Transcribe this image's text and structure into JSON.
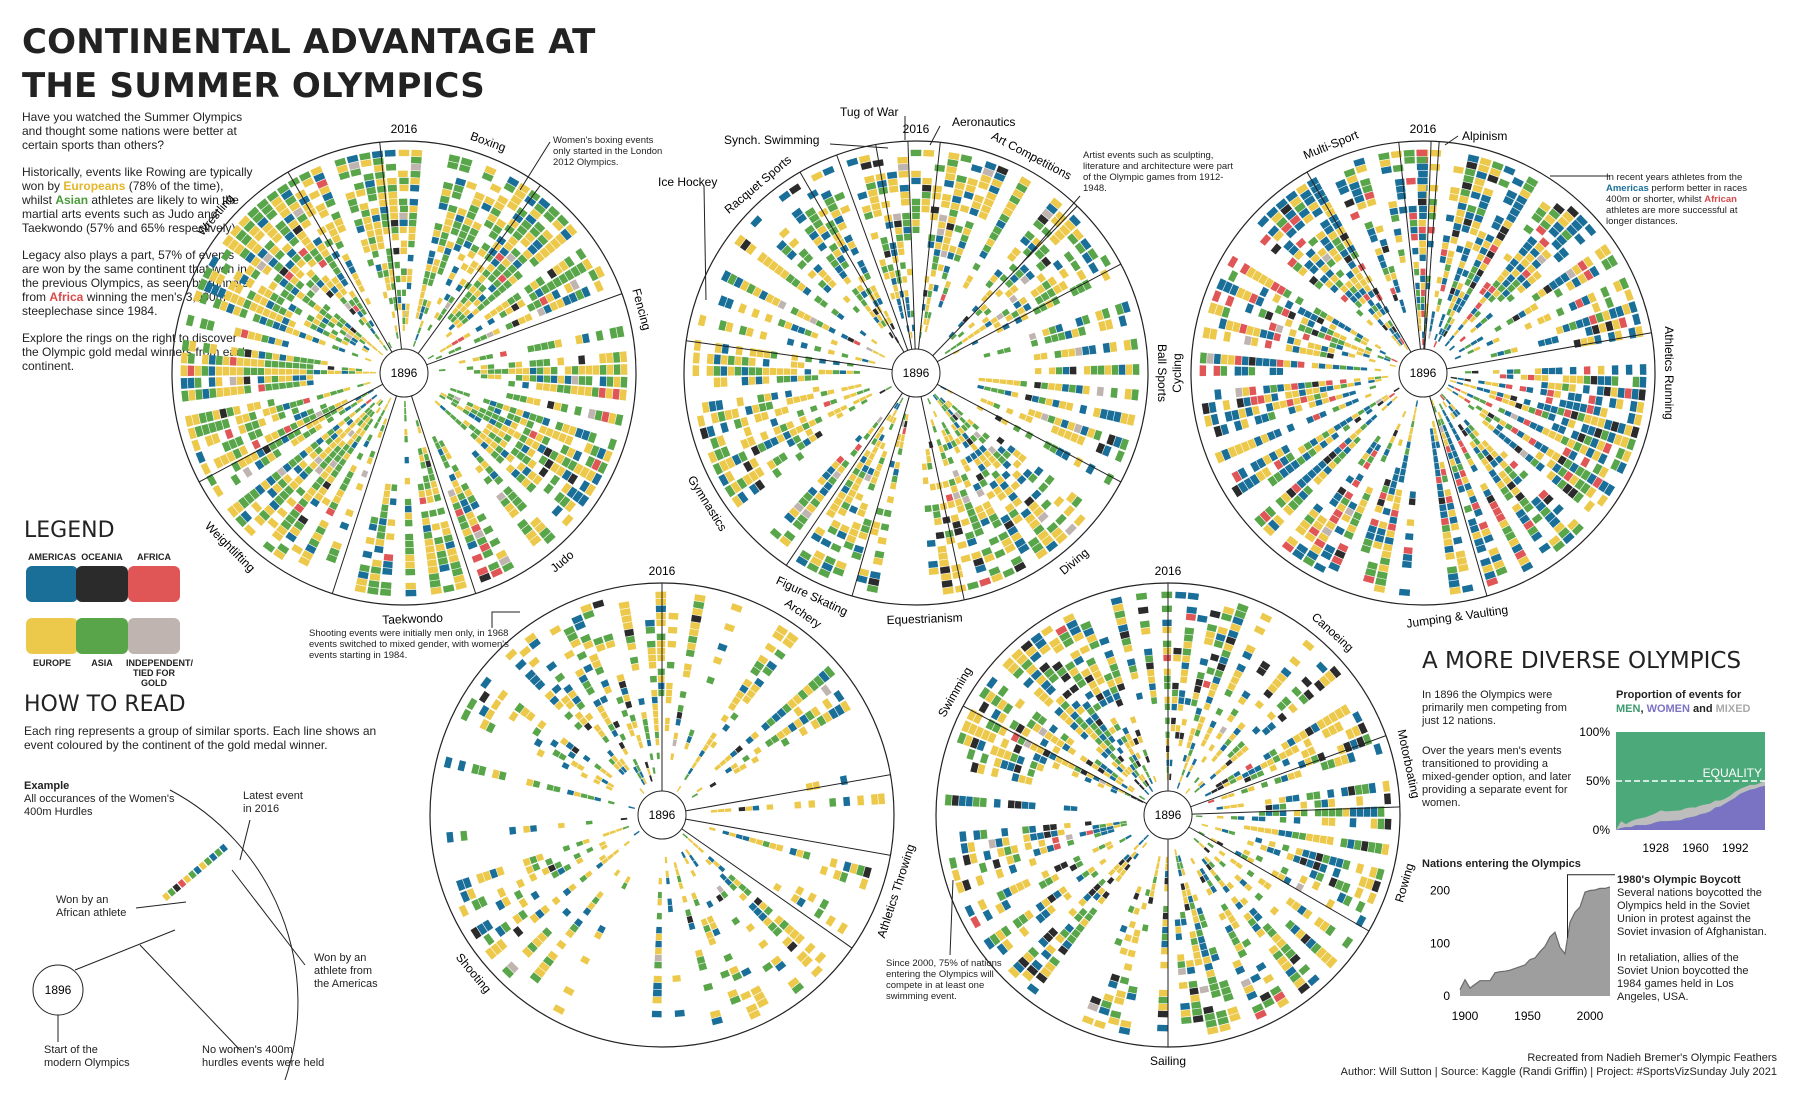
{
  "title_line1": "CONTINENTAL ADVANTAGE AT",
  "title_line2": "THE SUMMER OLYMPICS",
  "intro": {
    "p1": "Have you watched the Summer Olympics and thought some nations were better at certain sports than others?",
    "p2a": "Historically, events like Rowing are typically won by ",
    "p2_europeans": "Europeans",
    "p2b": " (78% of the time), whilst ",
    "p2_asian": "Asian",
    "p2c": " athletes are likely to win the martial arts events such as Judo and Taekwondo (57% and 65% respectively).",
    "p3a": "Legacy also plays a part, 57% of events are won by the same continent that won in the previous Olympics, as seen by runners from ",
    "p3_africa": "Africa",
    "p3b": " winning the men's 3,000m steeplechase since 1984.",
    "p4": "Explore the rings on the right to discover the Olympic gold medal winners from each continent."
  },
  "legend": {
    "heading": "LEGEND",
    "items": [
      {
        "label": "AMERICAS",
        "color": "#1a6f99"
      },
      {
        "label": "OCEANIA",
        "color": "#2b2b2b"
      },
      {
        "label": "AFRICA",
        "color": "#e05555"
      },
      {
        "label": "EUROPE",
        "color": "#ecc94b"
      },
      {
        "label": "ASIA",
        "color": "#59a54a"
      },
      {
        "label": "INDEPENDENT/ TIED FOR GOLD",
        "color": "#bfb4af"
      }
    ]
  },
  "how_to_read": {
    "heading": "HOW TO READ",
    "body": "Each ring represents a group of similar sports. Each line shows an event coloured by the continent of the gold medal winner.",
    "example_title": "Example",
    "example_body": "All occurances of the Women's 400m Hurdles",
    "latest_a": "Latest event",
    "latest_b": "in 2016",
    "african_a": "Won by an",
    "african_b": "African athlete",
    "americas_a": "Won by an",
    "americas_b": "athlete from",
    "americas_c": "the Americas",
    "start_a": "Start of the",
    "start_b": "modern Olympics",
    "nowomen_a": "No women's 400m",
    "nowomen_b": "hurdles events were held",
    "center_year": "1896"
  },
  "rings": {
    "center_label": "1896",
    "top_label": "2016",
    "r1": {
      "sports": [
        "Boxing",
        "Fencing",
        "Judo",
        "Taekwondo",
        "Weightlifting",
        "Wrestling"
      ],
      "note": "Women's boxing events only started in the London 2012 Olympics."
    },
    "r2": {
      "sports": [
        "Art Competitions",
        "Ball Sports",
        "Diving",
        "Equestrianism",
        "Figure Skating",
        "Gymnastics",
        "Ice Hockey",
        "Racquet Sports",
        "Synch. Swimming",
        "Tug of War",
        "Aeronautics"
      ],
      "note": "Artist events such as sculpting, literature and architecture were part of the Olympic games from 1912-1948."
    },
    "r3": {
      "sports": [
        "Alpinism",
        "Athletics Running",
        "Jumping & Vaulting",
        "Cycling",
        "Multi-Sport"
      ],
      "note_a": "In recent years athletes from the ",
      "note_americas": "Americas",
      "note_b": " perform better in races 400m or shorter, whilst ",
      "note_african": "African",
      "note_c": " athletes are more successful at longer distances."
    },
    "r4": {
      "sports": [
        "Archery",
        "Athletics Throwing",
        "Shooting"
      ],
      "note": "Shooting events were initially men only, in 1968 events switched to mixed gender, with women's events starting in 1984."
    },
    "r5": {
      "sports": [
        "Canoeing",
        "Motorboating",
        "Rowing",
        "Sailing",
        "Swimming"
      ],
      "note": "Since 2000, 75% of nations entering the Olympics will compete in at least one swimming event."
    }
  },
  "diverse": {
    "heading": "A MORE DIVERSE OLYMPICS",
    "p1": "In 1896 the Olympics were primarily men competing from just 12 nations.",
    "p2": "Over the years men's events transitioned to providing a mixed-gender option, and later providing a separate event for women.",
    "prop_title_a": "Proportion of events for",
    "prop_men": "MEN",
    "prop_comma": ", ",
    "prop_women": "WOMEN",
    "prop_and": " and ",
    "prop_mixed": "MIXED",
    "equality": "EQUALITY",
    "nations_title": "Nations entering the Olympics",
    "boycott_title": "1980's Olympic Boycott",
    "boycott_p1": "Several nations boycotted the Olympics held in the Soviet Union in protest against the Soviet invasion of Afghanistan.",
    "boycott_p2": "In retaliation, allies of the Soviet Union boycotted the 1984 games held in Los Angeles, USA."
  },
  "chart_data": [
    {
      "type": "area",
      "title": "Proportion of events for MEN, WOMEN and MIXED",
      "x_ticks": [
        "1928",
        "1960",
        "1992"
      ],
      "y_ticks": [
        "0%",
        "50%",
        "100%"
      ],
      "x": [
        1896,
        1900,
        1904,
        1908,
        1912,
        1920,
        1924,
        1928,
        1932,
        1936,
        1948,
        1952,
        1956,
        1960,
        1964,
        1968,
        1972,
        1976,
        1980,
        1984,
        1988,
        1992,
        1996,
        2000,
        2004,
        2008,
        2012,
        2016
      ],
      "series": [
        {
          "name": "WOMEN",
          "values": [
            0,
            0.02,
            0.03,
            0.03,
            0.05,
            0.05,
            0.06,
            0.08,
            0.09,
            0.09,
            0.1,
            0.12,
            0.13,
            0.14,
            0.16,
            0.17,
            0.19,
            0.23,
            0.24,
            0.27,
            0.3,
            0.33,
            0.37,
            0.39,
            0.41,
            0.42,
            0.44,
            0.45
          ]
        },
        {
          "name": "MIXED",
          "values": [
            0,
            0.07,
            0.03,
            0.06,
            0.06,
            0.08,
            0.09,
            0.09,
            0.11,
            0.1,
            0.1,
            0.1,
            0.1,
            0.09,
            0.09,
            0.09,
            0.08,
            0.07,
            0.06,
            0.05,
            0.05,
            0.06,
            0.05,
            0.05,
            0.05,
            0.04,
            0.04,
            0.05
          ]
        },
        {
          "name": "MEN",
          "values": [
            1,
            0.91,
            0.94,
            0.91,
            0.89,
            0.87,
            0.85,
            0.83,
            0.8,
            0.81,
            0.8,
            0.78,
            0.77,
            0.77,
            0.75,
            0.74,
            0.73,
            0.7,
            0.7,
            0.68,
            0.65,
            0.61,
            0.58,
            0.56,
            0.54,
            0.54,
            0.52,
            0.5
          ]
        }
      ],
      "reference_line": 0.5
    },
    {
      "type": "area",
      "title": "Nations entering the Olympics",
      "x_ticks": [
        "1900",
        "1950",
        "2000"
      ],
      "y_ticks": [
        "0",
        "100",
        "200"
      ],
      "x": [
        1896,
        1900,
        1904,
        1908,
        1912,
        1920,
        1924,
        1928,
        1932,
        1936,
        1948,
        1952,
        1956,
        1960,
        1964,
        1968,
        1972,
        1976,
        1980,
        1984,
        1988,
        1992,
        1996,
        2000,
        2004,
        2008,
        2012,
        2016
      ],
      "values": [
        12,
        31,
        15,
        22,
        29,
        29,
        44,
        46,
        47,
        49,
        59,
        69,
        72,
        84,
        94,
        112,
        121,
        92,
        80,
        140,
        159,
        169,
        197,
        200,
        201,
        204,
        204,
        207
      ]
    }
  ],
  "footer": {
    "line1": "Recreated from Nadieh Bremer's Olympic Feathers",
    "line2": "Author: Will Sutton | Source: Kaggle (Randi Griffin) | Project: #SportsVizSunday July 2021"
  }
}
